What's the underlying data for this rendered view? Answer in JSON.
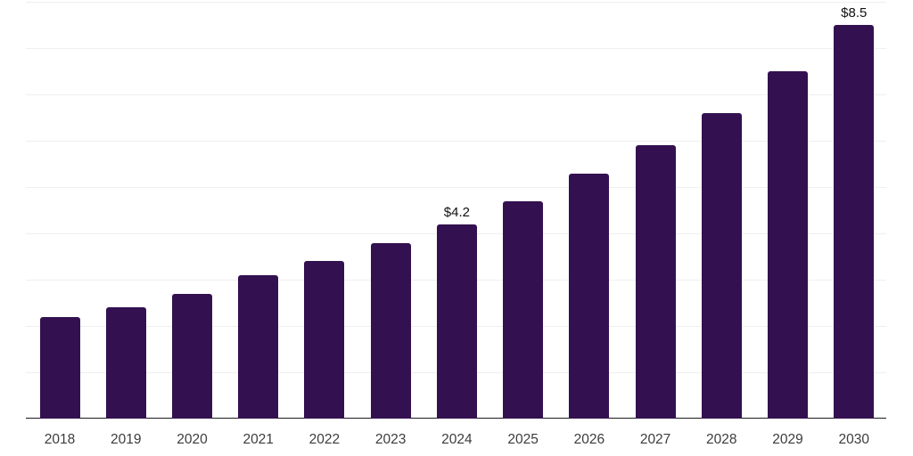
{
  "chart_data": {
    "type": "bar",
    "title": "",
    "xlabel": "",
    "ylabel": "",
    "categories": [
      "2018",
      "2019",
      "2020",
      "2021",
      "2022",
      "2023",
      "2024",
      "2025",
      "2026",
      "2027",
      "2028",
      "2029",
      "2030"
    ],
    "values": [
      2.2,
      2.4,
      2.7,
      3.1,
      3.4,
      3.8,
      4.2,
      4.7,
      5.3,
      5.9,
      6.6,
      7.5,
      8.5
    ],
    "bar_labels": [
      "",
      "",
      "",
      "",
      "",
      "",
      "$4.2",
      "",
      "",
      "",
      "",
      "",
      "$8.5"
    ],
    "ylim": [
      0,
      9
    ],
    "gridline_values": [
      1,
      2,
      3,
      4,
      5,
      6,
      7,
      8,
      9
    ],
    "grid_on": true,
    "legend": "none",
    "colors": {
      "bar": "#331150",
      "gridline": "#efefef",
      "axis_line": "#1b1b1b",
      "tick_label": "#3c3c3c",
      "value_label": "#111111",
      "background": "#ffffff"
    }
  }
}
